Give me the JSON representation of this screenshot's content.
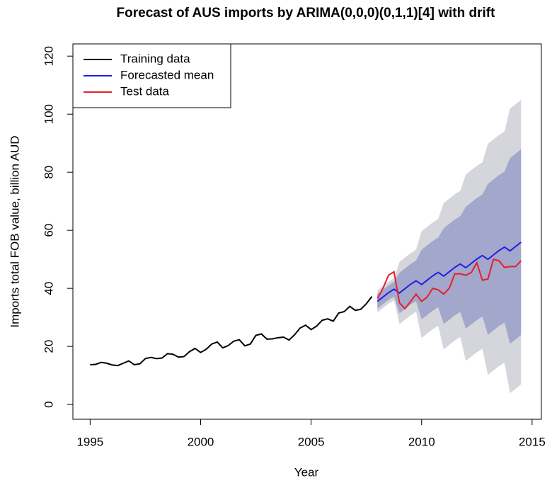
{
  "chart_data": {
    "type": "forecast",
    "title": "Forecast of AUS imports by ARIMA(0,0,0)(0,1,1)[4] with drift",
    "x_label": "Year",
    "y_label": "Imports total FOB value, billion AUD",
    "xlim": [
      1994.22,
      2015.42
    ],
    "ylim": [
      -5.1,
      124.2
    ],
    "xticks": [
      1995,
      2000,
      2005,
      2010,
      2015
    ],
    "yticks": [
      0,
      20,
      40,
      60,
      80,
      100,
      120
    ],
    "legend": "top-left",
    "series": [
      {
        "name": "Training data",
        "color": "#000000",
        "x": [
          1995,
          1995.25,
          1995.5,
          1995.75,
          1996,
          1996.25,
          1996.5,
          1996.75,
          1997,
          1997.25,
          1997.5,
          1997.75,
          1998,
          1998.25,
          1998.5,
          1998.75,
          1999,
          1999.25,
          1999.5,
          1999.75,
          2000,
          2000.25,
          2000.5,
          2000.75,
          2001,
          2001.25,
          2001.5,
          2001.75,
          2002,
          2002.25,
          2002.5,
          2002.75,
          2003,
          2003.25,
          2003.5,
          2003.75,
          2004,
          2004.25,
          2004.5,
          2004.75,
          2005,
          2005.25,
          2005.5,
          2005.75,
          2006,
          2006.25,
          2006.5,
          2006.75,
          2007,
          2007.25,
          2007.5,
          2007.75
        ],
        "values": [
          13.7,
          13.8,
          14.5,
          14.2,
          13.6,
          13.4,
          14.2,
          15.0,
          13.7,
          14.0,
          15.8,
          16.2,
          15.8,
          16.0,
          17.5,
          17.3,
          16.3,
          16.5,
          18.2,
          19.3,
          17.9,
          19.0,
          20.8,
          21.5,
          19.5,
          20.3,
          21.8,
          22.3,
          20.2,
          20.8,
          23.8,
          24.3,
          22.5,
          22.6,
          23.0,
          23.2,
          22.2,
          24.0,
          26.3,
          27.3,
          25.8,
          27.0,
          29.0,
          29.5,
          28.7,
          31.5,
          32.0,
          33.8,
          32.4,
          32.8,
          34.7,
          37.2
        ]
      },
      {
        "name": "Forecasted mean",
        "color": "#1f1fe6",
        "x": [
          2008,
          2008.25,
          2008.5,
          2008.75,
          2009,
          2009.25,
          2009.5,
          2009.75,
          2010,
          2010.25,
          2010.5,
          2010.75,
          2011,
          2011.25,
          2011.5,
          2011.75,
          2012,
          2012.25,
          2012.5,
          2012.75,
          2013,
          2013.25,
          2013.5,
          2013.75,
          2014,
          2014.25,
          2014.5
        ],
        "values": [
          35.5,
          37.0,
          38.5,
          39.7,
          38.4,
          39.9,
          41.4,
          42.6,
          41.3,
          42.8,
          44.3,
          45.5,
          44.2,
          45.7,
          47.2,
          48.4,
          47.1,
          48.6,
          50.1,
          51.3,
          50.0,
          51.5,
          53.0,
          54.2,
          52.9,
          54.4,
          55.9
        ]
      },
      {
        "name": "Test data",
        "color": "#e3212b",
        "x": [
          2008,
          2008.25,
          2008.5,
          2008.75,
          2009,
          2009.25,
          2009.5,
          2009.75,
          2010,
          2010.25,
          2010.5,
          2010.75,
          2011,
          2011.25,
          2011.5,
          2011.75,
          2012,
          2012.25,
          2012.5,
          2012.75,
          2013,
          2013.25,
          2013.5,
          2013.75,
          2014,
          2014.25,
          2014.5
        ],
        "values": [
          36.5,
          40.0,
          44.5,
          45.7,
          35.0,
          33.0,
          35.5,
          38.0,
          35.5,
          37.0,
          40.0,
          39.5,
          38.0,
          40.0,
          45.0,
          45.0,
          44.5,
          45.5,
          48.8,
          42.8,
          43.2,
          50.0,
          49.5,
          47.2,
          47.5,
          47.5,
          49.5
        ]
      }
    ],
    "bands": [
      {
        "color": "#d5d6db",
        "x": [
          2008,
          2008.25,
          2008.5,
          2008.75,
          2009,
          2009.25,
          2009.5,
          2009.75,
          2010,
          2010.25,
          2010.5,
          2010.75,
          2011,
          2011.25,
          2011.5,
          2011.75,
          2012,
          2012.25,
          2012.5,
          2012.75,
          2013,
          2013.25,
          2013.5,
          2013.75,
          2014,
          2014.25,
          2014.5
        ],
        "lower": [
          31.7,
          33.2,
          34.7,
          35.9,
          27.7,
          29.2,
          30.7,
          31.9,
          22.9,
          24.4,
          25.9,
          27.1,
          19.0,
          20.5,
          22.0,
          23.2,
          15.0,
          16.5,
          18.0,
          19.2,
          10.2,
          11.7,
          13.2,
          14.4,
          3.9,
          5.4,
          6.9
        ],
        "upper": [
          39.3,
          40.8,
          42.3,
          43.5,
          49.1,
          50.6,
          52.1,
          53.3,
          59.7,
          61.2,
          62.7,
          63.9,
          69.4,
          70.9,
          72.4,
          73.6,
          79.2,
          80.7,
          82.2,
          83.4,
          89.8,
          91.3,
          92.8,
          94.0,
          101.9,
          103.4,
          104.9
        ]
      },
      {
        "color": "#a3a7cb",
        "x": [
          2008,
          2008.25,
          2008.5,
          2008.75,
          2009,
          2009.25,
          2009.5,
          2009.75,
          2010,
          2010.25,
          2010.5,
          2010.75,
          2011,
          2011.25,
          2011.5,
          2011.75,
          2012,
          2012.25,
          2012.5,
          2012.75,
          2013,
          2013.25,
          2013.5,
          2013.75,
          2014,
          2014.25,
          2014.5
        ],
        "lower": [
          33.0,
          34.5,
          36.0,
          37.2,
          31.4,
          32.9,
          34.4,
          35.6,
          29.3,
          30.8,
          32.3,
          33.5,
          27.7,
          29.2,
          30.7,
          31.9,
          26.1,
          27.6,
          29.1,
          30.3,
          24.0,
          25.5,
          27.0,
          28.2,
          20.9,
          22.4,
          23.9
        ],
        "upper": [
          38.0,
          39.5,
          41.0,
          42.2,
          45.4,
          46.9,
          48.4,
          49.6,
          53.3,
          54.8,
          56.3,
          57.5,
          60.7,
          62.2,
          63.7,
          64.9,
          68.1,
          69.6,
          71.1,
          72.3,
          76.0,
          77.5,
          79.0,
          80.2,
          84.9,
          86.4,
          87.9
        ]
      }
    ]
  }
}
